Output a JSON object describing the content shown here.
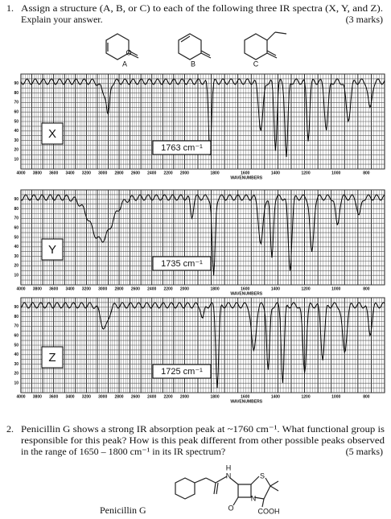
{
  "question1": {
    "number": "1.",
    "lines": [
      "Assign a structure (A, B, or C) to each of the following three IR spectra (X, Y, and Z).",
      "Explain your answer."
    ],
    "marks": "(3 marks)",
    "structure_labels": [
      "A",
      "B",
      "C"
    ]
  },
  "spectra": [
    {
      "label": "X",
      "peak_label": "1763 cm⁻¹"
    },
    {
      "label": "Y",
      "peak_label": "1735 cm⁻¹"
    },
    {
      "label": "Z",
      "peak_label": "1725 cm⁻¹"
    }
  ],
  "axis": {
    "x_ticks": [
      4000,
      3800,
      3600,
      3400,
      3200,
      3000,
      2800,
      2600,
      2400,
      2200,
      2000,
      1800,
      1600,
      1400,
      1200,
      1000,
      800
    ],
    "x_title": "WAVENUMBERS",
    "y_ticks": [
      90,
      80,
      70,
      60,
      50,
      40,
      30,
      20,
      10
    ]
  },
  "question2": {
    "number": "2.",
    "lines": [
      "Penicillin G shows a strong IR absorption peak at ~1760 cm⁻¹. What functional group is",
      "responsible for this peak? How is this peak different from other possible peaks observed",
      "in the range of 1650 – 1800 cm⁻¹ in its IR spectrum?"
    ],
    "marks": "(5 marks)",
    "molecule_name": "Penicillin G",
    "atoms": [
      "H",
      "N",
      "S",
      "N",
      "O",
      "COOH"
    ]
  }
}
